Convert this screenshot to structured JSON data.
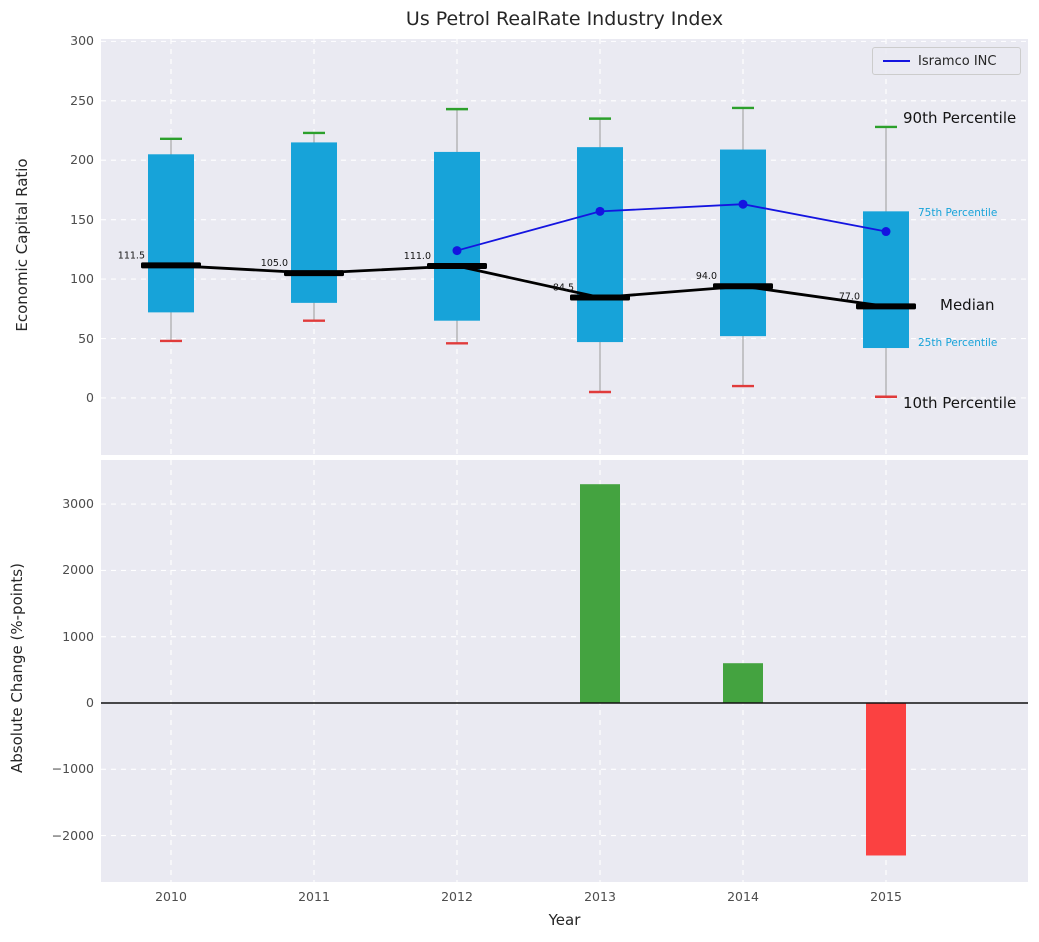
{
  "colors": {
    "background": "#eaeaf2",
    "grid": "#ffffff",
    "box": "#17a3d9",
    "median_line": "#000000",
    "trend_line": "#000000",
    "series": "#1414e0",
    "cap_top": "#2ca02c",
    "cap_bottom": "#e03b3b",
    "whisker": "#9a9a9a",
    "bar_positive": "#44a340",
    "bar_negative": "#fb4141",
    "tick_text": "#4d4d4d",
    "label_text": "#262626"
  },
  "chart_data": [
    {
      "type": "box",
      "title": "Us Petrol RealRate Industry Index",
      "ylabel": "Economic Capital Ratio",
      "ylim": [
        -48,
        302
      ],
      "yticks": [
        0,
        50,
        100,
        150,
        200,
        250,
        300
      ],
      "grid": true,
      "legend_position": "upper right",
      "categories": [
        "2010",
        "2011",
        "2012",
        "2013",
        "2014",
        "2015"
      ],
      "boxes": [
        {
          "year": "2010",
          "p10": 48,
          "p25": 72,
          "median": 111.5,
          "p75": 205,
          "p90": 218,
          "median_label": "111.5"
        },
        {
          "year": "2011",
          "p10": 65,
          "p25": 80,
          "median": 105.0,
          "p75": 215,
          "p90": 223,
          "median_label": "105.0"
        },
        {
          "year": "2012",
          "p10": 46,
          "p25": 65,
          "median": 111.0,
          "p75": 207,
          "p90": 243,
          "median_label": "111.0"
        },
        {
          "year": "2013",
          "p10": 5,
          "p25": 47,
          "median": 84.5,
          "p75": 211,
          "p90": 235,
          "median_label": "84.5"
        },
        {
          "year": "2014",
          "p10": 10,
          "p25": 52,
          "median": 94.0,
          "p75": 209,
          "p90": 244,
          "median_label": "94.0"
        },
        {
          "year": "2015",
          "p10": 1,
          "p25": 42,
          "median": 77.0,
          "p75": 157,
          "p90": 228,
          "median_label": "77.0"
        }
      ],
      "series": [
        {
          "name": "Isramco INC",
          "x": [
            "2012",
            "2013",
            "2014",
            "2015"
          ],
          "values": [
            124,
            157,
            163,
            140
          ]
        }
      ],
      "annotations": [
        {
          "label": "90th Percentile",
          "value": 235,
          "emphasis": "large"
        },
        {
          "label": "75th Percentile",
          "value": 155,
          "emphasis": "small"
        },
        {
          "label": "Median",
          "value": 77,
          "emphasis": "large"
        },
        {
          "label": "25th Percentile",
          "value": 45,
          "emphasis": "small"
        },
        {
          "label": "10th Percentile",
          "value": -5,
          "emphasis": "large"
        }
      ]
    },
    {
      "type": "bar",
      "xlabel": "Year",
      "ylabel": "Absolute Change (%-points)",
      "ylim": [
        -2700,
        3665
      ],
      "yticks": [
        -2000,
        -1000,
        0,
        1000,
        2000,
        3000
      ],
      "ytick_labels": [
        "−2000",
        "−1000",
        "0",
        "1000",
        "2000",
        "3000"
      ],
      "grid": true,
      "categories": [
        "2010",
        "2011",
        "2012",
        "2013",
        "2014",
        "2015"
      ],
      "values": [
        null,
        null,
        null,
        3300,
        600,
        -2300
      ]
    }
  ]
}
